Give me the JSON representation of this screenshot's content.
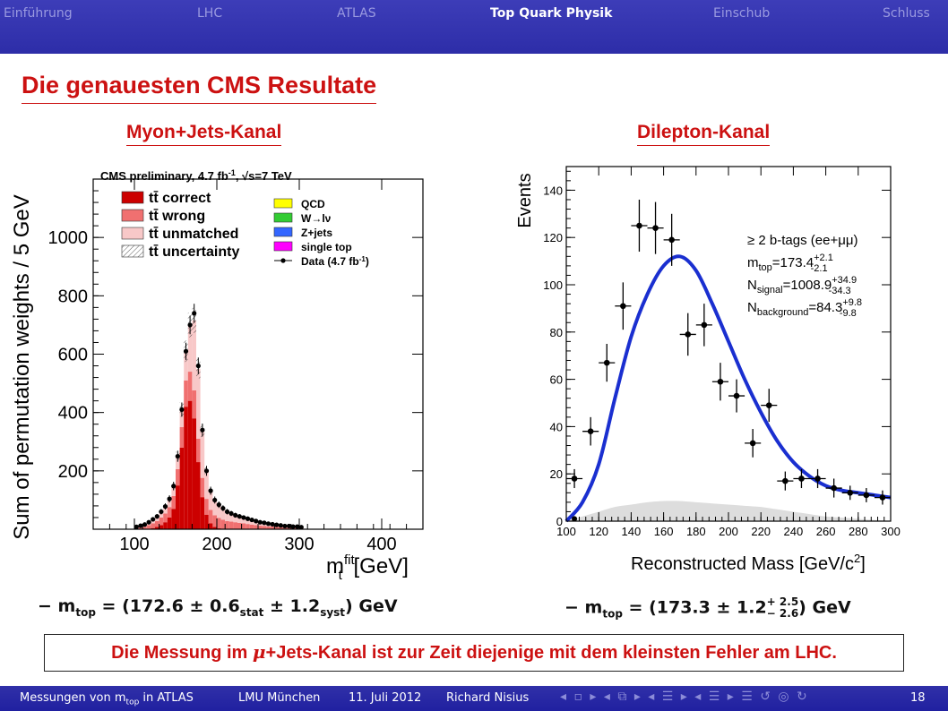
{
  "nav": {
    "items": [
      {
        "label": "Einführung",
        "active": false
      },
      {
        "label": "LHC",
        "active": false
      },
      {
        "label": "ATLAS",
        "active": false
      },
      {
        "label": "Top Quark Physik",
        "active": true
      },
      {
        "label": "Einschub",
        "active": false
      },
      {
        "label": "Schluss",
        "active": false
      }
    ]
  },
  "slide": {
    "title": "Die genauesten CMS Resultate",
    "left_title": "Myon+Jets-Kanal",
    "right_title": "Dilepton-Kanal",
    "left_result": {
      "prefix": "− m",
      "sub": "top",
      "eq": " = (172.6 ± 0.6",
      "stat": "stat",
      "mid": " ± 1.2",
      "syst": "syst",
      "suffix": ")  GeV"
    },
    "right_result": {
      "prefix": "− m",
      "sub": "top",
      "eq": " = (173.3 ± 1.2",
      "up": "+ 2.5",
      "down": "− 2.6",
      "suffix": ") GeV"
    },
    "conclusion": {
      "pre": "Die Messung im ",
      "mu": "μ",
      "post": "+Jets-Kanal ist zur Zeit diejenige mit dem kleinsten Fehler am LHC."
    }
  },
  "footer": {
    "talk": "Messungen von m",
    "talk_sub": "top",
    "talk_post": " in ATLAS",
    "institute": "LMU München",
    "date": "11. Juli 2012",
    "author": "Richard Nisius",
    "page": "18",
    "nav_symbols": "◂ ▫ ▸ ◂ ⧉ ▸ ◂ ☰ ▸ ◂ ☰ ▸   ☰   ↺ ◎ ↻"
  },
  "chart_data": [
    {
      "type": "bar",
      "header": "CMS preliminary, 4.7 fb",
      "header_sup": "-1",
      "header_tail": ", √s=7 TeV",
      "xlabel": "m",
      "xlabel_sup": "fit",
      "xlabel_sub": "t",
      "xlabel_unit": " [GeV]",
      "ylabel": "Sum of permutation weights / 5 GeV",
      "xlim": [
        50,
        450
      ],
      "ylim": [
        0,
        1200
      ],
      "xticks": [
        100,
        200,
        300,
        400
      ],
      "yticks": [
        200,
        400,
        600,
        800,
        1000
      ],
      "legend_left": [
        {
          "name": "tt̄ correct",
          "color": "#cc0000"
        },
        {
          "name": "tt̄ wrong",
          "color": "#f07070"
        },
        {
          "name": "tt̄ unmatched",
          "color": "#f8c8c8"
        },
        {
          "name": "tt̄ uncertainty",
          "color": "hatch"
        }
      ],
      "legend_right": [
        {
          "name": "QCD",
          "color": "#ffff00"
        },
        {
          "name": "W→lν",
          "color": "#33cc33"
        },
        {
          "name": "Z+jets",
          "color": "#3366ff"
        },
        {
          "name": "single top",
          "color": "#ff00ff"
        },
        {
          "name": "Data (4.7 fb",
          "sup": "-1",
          "tail": ")",
          "color": "marker"
        }
      ],
      "bin_width": 5,
      "bins_x": [
        100,
        105,
        110,
        115,
        120,
        125,
        130,
        135,
        140,
        145,
        150,
        155,
        160,
        165,
        170,
        175,
        180,
        185,
        190,
        195,
        200,
        205,
        210,
        215,
        220,
        225,
        230,
        235,
        240,
        245,
        250,
        255,
        260,
        265,
        270,
        275,
        280,
        285,
        290,
        295,
        300
      ],
      "series": [
        {
          "name": "tt̄ correct",
          "values": [
            0,
            0,
            0,
            2,
            4,
            8,
            14,
            24,
            40,
            70,
            150,
            280,
            420,
            440,
            380,
            230,
            110,
            50,
            20,
            8,
            3,
            1,
            0,
            0,
            0,
            0,
            0,
            0,
            0,
            0,
            0,
            0,
            0,
            0,
            0,
            0,
            0,
            0,
            0,
            0,
            0
          ]
        },
        {
          "name": "tt̄ wrong",
          "values": [
            4,
            6,
            8,
            12,
            16,
            20,
            26,
            30,
            36,
            44,
            56,
            70,
            90,
            100,
            96,
            80,
            66,
            54,
            46,
            40,
            36,
            32,
            28,
            26,
            24,
            22,
            20,
            18,
            16,
            14,
            12,
            11,
            10,
            9,
            8,
            7,
            6,
            6,
            5,
            5,
            4
          ]
        },
        {
          "name": "tt̄ unmatched",
          "values": [
            4,
            6,
            8,
            10,
            14,
            16,
            20,
            24,
            28,
            34,
            44,
            60,
            100,
            160,
            240,
            240,
            160,
            96,
            66,
            52,
            44,
            38,
            32,
            28,
            24,
            22,
            20,
            18,
            16,
            14,
            12,
            10,
            9,
            8,
            7,
            6,
            5,
            5,
            4,
            4,
            3
          ]
        }
      ],
      "data_points": {
        "x": [
          100,
          105,
          110,
          115,
          120,
          125,
          130,
          135,
          140,
          145,
          150,
          155,
          160,
          165,
          170,
          175,
          180,
          185,
          190,
          195,
          200,
          205,
          210,
          215,
          220,
          225,
          230,
          235,
          240,
          245,
          250,
          255,
          260,
          265,
          270,
          275,
          280,
          285,
          290,
          295,
          300
        ],
        "y": [
          8,
          12,
          16,
          24,
          34,
          44,
          60,
          78,
          104,
          148,
          250,
          410,
          610,
          700,
          740,
          560,
          340,
          200,
          132,
          100,
          84,
          72,
          60,
          54,
          48,
          44,
          40,
          36,
          32,
          28,
          24,
          22,
          19,
          17,
          15,
          13,
          11,
          11,
          9,
          9,
          7
        ]
      }
    },
    {
      "type": "scatter",
      "xlabel": "Reconstructed Mass [GeV/c",
      "xlabel_sup": "2",
      "xlabel_tail": "]",
      "ylabel": "Events",
      "xlim": [
        100,
        300
      ],
      "ylim": [
        0,
        150
      ],
      "xticks": [
        100,
        120,
        140,
        160,
        180,
        200,
        220,
        240,
        260,
        280,
        300
      ],
      "yticks": [
        0,
        20,
        40,
        60,
        80,
        100,
        120,
        140
      ],
      "annotations": [
        {
          "pre": "≥ 2 b-tags (ee+μμ)"
        },
        {
          "pre": "m",
          "sub": "top",
          "mid": "=173.4",
          "up": "+2.1",
          "down": "-2.1"
        },
        {
          "pre": "N",
          "sub": "signal",
          "mid": "=1008.9",
          "up": "+34.9",
          "down": "-34.3"
        },
        {
          "pre": "N",
          "sub": "background",
          "mid": "=84.3",
          "up": "+9.8",
          "down": "-9.8"
        }
      ],
      "data_points": {
        "x": [
          105,
          115,
          125,
          135,
          145,
          155,
          165,
          175,
          185,
          195,
          205,
          215,
          225,
          235,
          245,
          255,
          265,
          275,
          285,
          295
        ],
        "y": [
          18,
          38,
          67,
          91,
          125,
          124,
          119,
          79,
          83,
          59,
          53,
          33,
          49,
          17,
          18,
          18,
          14,
          12,
          11,
          10
        ],
        "yerr": [
          4,
          6,
          8,
          10,
          11,
          11,
          11,
          9,
          9,
          8,
          7,
          6,
          7,
          4,
          4,
          4,
          4,
          3,
          3,
          3
        ]
      },
      "fit_curve": {
        "x": [
          100,
          110,
          120,
          130,
          140,
          150,
          160,
          170,
          180,
          190,
          200,
          210,
          220,
          230,
          240,
          250,
          260,
          270,
          280,
          290,
          300
        ],
        "y": [
          0,
          8,
          24,
          52,
          78,
          96,
          108,
          112,
          106,
          92,
          76,
          60,
          46,
          34,
          25,
          19,
          15,
          13,
          12,
          11,
          10
        ]
      },
      "background_curve": {
        "x": [
          100,
          110,
          120,
          130,
          140,
          150,
          160,
          170,
          180,
          190,
          200,
          210,
          220,
          230,
          240,
          250,
          260,
          270,
          280,
          290,
          300
        ],
        "y": [
          0,
          2,
          4,
          6,
          7,
          8,
          8.5,
          8.5,
          8,
          7.5,
          7,
          6.5,
          6,
          5,
          4,
          3,
          2,
          1.5,
          1,
          0.5,
          0.2
        ]
      }
    }
  ]
}
